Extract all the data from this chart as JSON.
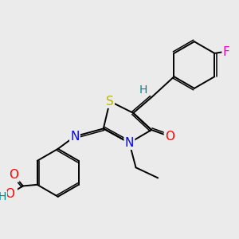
{
  "background_color": "#ebebeb",
  "atom_colors": {
    "S": "#b8b800",
    "N": "#0000ff",
    "O": "#ff0000",
    "F": "#ff00cc",
    "H": "#008888",
    "C": "#000000"
  },
  "bond_color": "#000000",
  "lw": 1.4,
  "lw2": 1.1,
  "dbl_off": 0.07
}
